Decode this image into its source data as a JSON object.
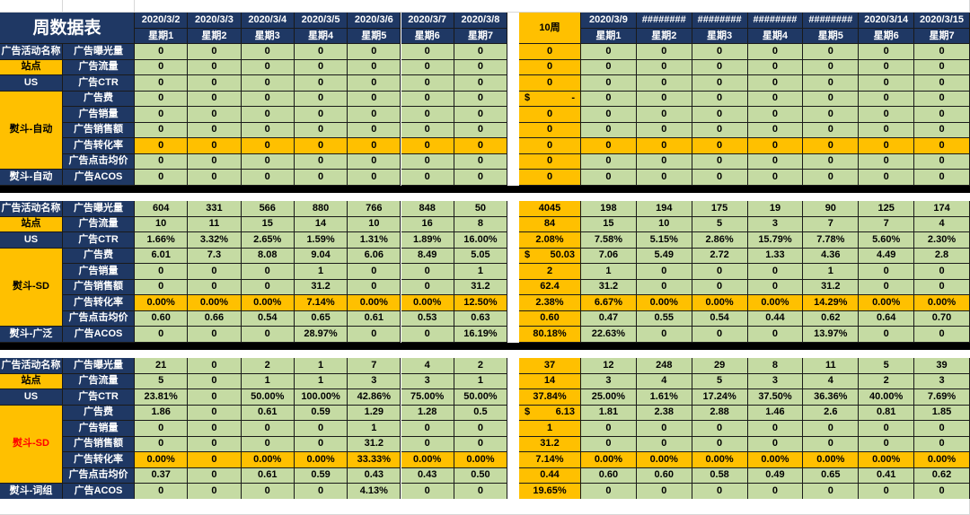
{
  "title": "周数据表",
  "dates": [
    "2020/3/2",
    "2020/3/3",
    "2020/3/4",
    "2020/3/5",
    "2020/3/6",
    "2020/3/7",
    "2020/3/8",
    "2020/3/9",
    "########",
    "########",
    "########",
    "########",
    "2020/3/14",
    "2020/3/15"
  ],
  "weekdays": [
    "星期1",
    "星期2",
    "星期3",
    "星期4",
    "星期5",
    "星期6",
    "星期7",
    "星期1",
    "星期2",
    "星期3",
    "星期4",
    "星期5",
    "星期6",
    "星期7"
  ],
  "week_label": "10周",
  "metric_labels": [
    "广告曝光量",
    "广告流量",
    "广告CTR",
    "广告费",
    "广告销量",
    "广告销售额",
    "广告转化率",
    "广告点击均价",
    "广告ACOS"
  ],
  "left_labels": {
    "activity": "广告活动名称",
    "site": "站点",
    "country": "US"
  },
  "colors": {
    "navy": "#1f3864",
    "green": "#c5dba3",
    "yellow": "#ffc000",
    "red": "#ff0000"
  },
  "blocks": [
    {
      "group": "熨斗-自动",
      "group_red": false,
      "footer": "熨斗-自动",
      "rows": [
        {
          "days": [
            "0",
            "0",
            "0",
            "0",
            "0",
            "0",
            "0"
          ],
          "week": "0",
          "next": [
            "0",
            "0",
            "0",
            "0",
            "0",
            "0",
            "0"
          ]
        },
        {
          "days": [
            "0",
            "0",
            "0",
            "0",
            "0",
            "0",
            "0"
          ],
          "week": "0",
          "next": [
            "0",
            "0",
            "0",
            "0",
            "0",
            "0",
            "0"
          ]
        },
        {
          "days": [
            "0",
            "0",
            "0",
            "0",
            "0",
            "0",
            "0"
          ],
          "week": "0",
          "next": [
            "0",
            "0",
            "0",
            "0",
            "0",
            "0",
            "0"
          ]
        },
        {
          "days": [
            "0",
            "0",
            "0",
            "0",
            "0",
            "0",
            "0"
          ],
          "week": "-",
          "week_currency": "$",
          "next": [
            "0",
            "0",
            "0",
            "0",
            "0",
            "0",
            "0"
          ]
        },
        {
          "days": [
            "0",
            "0",
            "0",
            "0",
            "0",
            "0",
            "0"
          ],
          "week": "0",
          "next": [
            "0",
            "0",
            "0",
            "0",
            "0",
            "0",
            "0"
          ]
        },
        {
          "days": [
            "0",
            "0",
            "0",
            "0",
            "0",
            "0",
            "0"
          ],
          "week": "0",
          "next": [
            "0",
            "0",
            "0",
            "0",
            "0",
            "0",
            "0"
          ]
        },
        {
          "days": [
            "0",
            "0",
            "0",
            "0",
            "0",
            "0",
            "0"
          ],
          "week": "0",
          "next": [
            "0",
            "0",
            "0",
            "0",
            "0",
            "0",
            "0"
          ]
        },
        {
          "days": [
            "0",
            "0",
            "0",
            "0",
            "0",
            "0",
            "0"
          ],
          "week": "0",
          "next": [
            "0",
            "0",
            "0",
            "0",
            "0",
            "0",
            "0"
          ]
        },
        {
          "days": [
            "0",
            "0",
            "0",
            "0",
            "0",
            "0",
            "0"
          ],
          "week": "0",
          "next": [
            "0",
            "0",
            "0",
            "0",
            "0",
            "0",
            "0"
          ]
        }
      ]
    },
    {
      "group": "熨斗-SD",
      "group_red": false,
      "footer": "熨斗-广泛",
      "rows": [
        {
          "days": [
            "604",
            "331",
            "566",
            "880",
            "766",
            "848",
            "50"
          ],
          "week": "4045",
          "next": [
            "198",
            "194",
            "175",
            "19",
            "90",
            "125",
            "174"
          ]
        },
        {
          "days": [
            "10",
            "11",
            "15",
            "14",
            "10",
            "16",
            "8"
          ],
          "week": "84",
          "next": [
            "15",
            "10",
            "5",
            "3",
            "7",
            "7",
            "4"
          ]
        },
        {
          "days": [
            "1.66%",
            "3.32%",
            "2.65%",
            "1.59%",
            "1.31%",
            "1.89%",
            "16.00%"
          ],
          "week": "2.08%",
          "next": [
            "7.58%",
            "5.15%",
            "2.86%",
            "15.79%",
            "7.78%",
            "5.60%",
            "2.30%"
          ]
        },
        {
          "days": [
            "6.01",
            "7.3",
            "8.08",
            "9.04",
            "6.06",
            "8.49",
            "5.05"
          ],
          "week": "50.03",
          "week_currency": "$",
          "next": [
            "7.06",
            "5.49",
            "2.72",
            "1.33",
            "4.36",
            "4.49",
            "2.8"
          ]
        },
        {
          "days": [
            "0",
            "0",
            "0",
            "1",
            "0",
            "0",
            "1"
          ],
          "week": "2",
          "next": [
            "1",
            "0",
            "0",
            "0",
            "1",
            "0",
            "0"
          ]
        },
        {
          "days": [
            "0",
            "0",
            "0",
            "31.2",
            "0",
            "0",
            "31.2"
          ],
          "week": "62.4",
          "next": [
            "31.2",
            "0",
            "0",
            "0",
            "31.2",
            "0",
            "0"
          ]
        },
        {
          "days": [
            "0.00%",
            "0.00%",
            "0.00%",
            "7.14%",
            "0.00%",
            "0.00%",
            "12.50%"
          ],
          "week": "2.38%",
          "next": [
            "6.67%",
            "0.00%",
            "0.00%",
            "0.00%",
            "14.29%",
            "0.00%",
            "0.00%"
          ]
        },
        {
          "days": [
            "0.60",
            "0.66",
            "0.54",
            "0.65",
            "0.61",
            "0.53",
            "0.63"
          ],
          "week": "0.60",
          "next": [
            "0.47",
            "0.55",
            "0.54",
            "0.44",
            "0.62",
            "0.64",
            "0.70"
          ]
        },
        {
          "days": [
            "0",
            "0",
            "0",
            "28.97%",
            "0",
            "0",
            "16.19%"
          ],
          "week": "80.18%",
          "next": [
            "22.63%",
            "0",
            "0",
            "0",
            "13.97%",
            "0",
            "0"
          ]
        }
      ]
    },
    {
      "group": "熨斗-SD",
      "group_red": true,
      "footer": "熨斗-词组",
      "rows": [
        {
          "days": [
            "21",
            "0",
            "2",
            "1",
            "7",
            "4",
            "2"
          ],
          "week": "37",
          "next": [
            "12",
            "248",
            "29",
            "8",
            "11",
            "5",
            "39"
          ]
        },
        {
          "days": [
            "5",
            "0",
            "1",
            "1",
            "3",
            "3",
            "1"
          ],
          "week": "14",
          "next": [
            "3",
            "4",
            "5",
            "3",
            "4",
            "2",
            "3"
          ]
        },
        {
          "days": [
            "23.81%",
            "0",
            "50.00%",
            "100.00%",
            "42.86%",
            "75.00%",
            "50.00%"
          ],
          "week": "37.84%",
          "next": [
            "25.00%",
            "1.61%",
            "17.24%",
            "37.50%",
            "36.36%",
            "40.00%",
            "7.69%"
          ]
        },
        {
          "days": [
            "1.86",
            "0",
            "0.61",
            "0.59",
            "1.29",
            "1.28",
            "0.5"
          ],
          "week": "6.13",
          "week_currency": "$",
          "next": [
            "1.81",
            "2.38",
            "2.88",
            "1.46",
            "2.6",
            "0.81",
            "1.85"
          ]
        },
        {
          "days": [
            "0",
            "0",
            "0",
            "0",
            "1",
            "0",
            "0"
          ],
          "week": "1",
          "next": [
            "0",
            "0",
            "0",
            "0",
            "0",
            "0",
            "0"
          ]
        },
        {
          "days": [
            "0",
            "0",
            "0",
            "0",
            "31.2",
            "0",
            "0"
          ],
          "week": "31.2",
          "next": [
            "0",
            "0",
            "0",
            "0",
            "0",
            "0",
            "0"
          ]
        },
        {
          "days": [
            "0.00%",
            "0",
            "0.00%",
            "0.00%",
            "33.33%",
            "0.00%",
            "0.00%"
          ],
          "week": "7.14%",
          "next": [
            "0.00%",
            "0.00%",
            "0.00%",
            "0.00%",
            "0.00%",
            "0.00%",
            "0.00%"
          ]
        },
        {
          "days": [
            "0.37",
            "0",
            "0.61",
            "0.59",
            "0.43",
            "0.43",
            "0.50"
          ],
          "week": "0.44",
          "next": [
            "0.60",
            "0.60",
            "0.58",
            "0.49",
            "0.65",
            "0.41",
            "0.62"
          ]
        },
        {
          "days": [
            "0",
            "0",
            "0",
            "0",
            "4.13%",
            "0",
            "0"
          ],
          "week": "19.65%",
          "next": [
            "0",
            "0",
            "0",
            "0",
            "0",
            "0",
            "0"
          ]
        }
      ]
    }
  ]
}
